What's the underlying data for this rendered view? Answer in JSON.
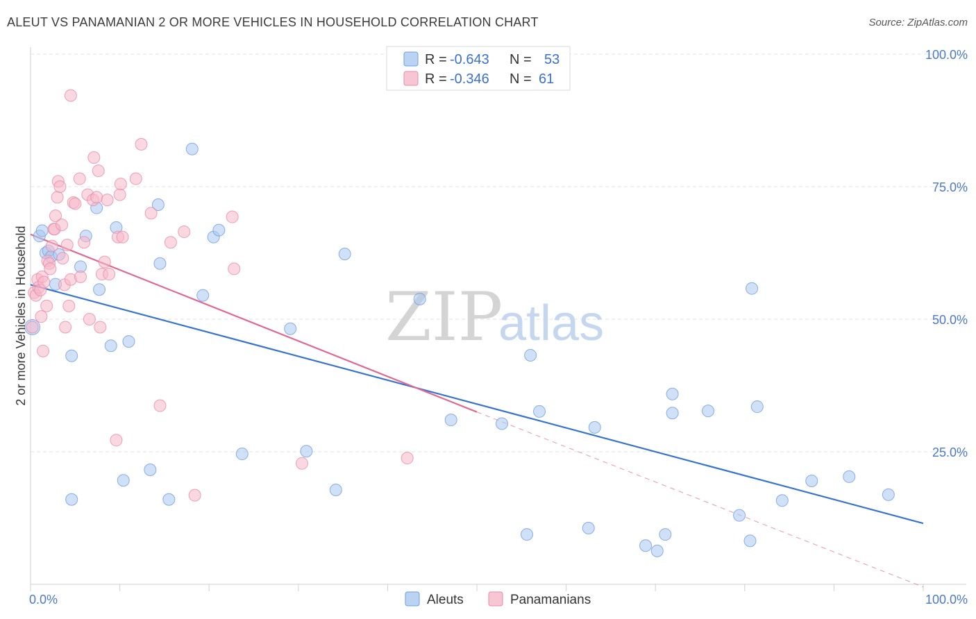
{
  "header": {
    "title": "ALEUT VS PANAMANIAN 2 OR MORE VEHICLES IN HOUSEHOLD CORRELATION CHART",
    "source": "Source: ZipAtlas.com"
  },
  "watermark": {
    "zip": "ZIP",
    "atlas": "atlas"
  },
  "legend": {
    "rows": [
      {
        "r_label": "R =",
        "r_value": "-0.643",
        "n_label": "N =",
        "n_value": "53",
        "color": "#aac8f0"
      },
      {
        "r_label": "R =",
        "r_value": "-0.346",
        "n_label": "N =",
        "n_value": "61",
        "color": "#f5b8cb"
      }
    ]
  },
  "bottom_legend": [
    {
      "label": "Aleuts",
      "color": "#aac8f0"
    },
    {
      "label": "Panamanians",
      "color": "#f5b8cb"
    }
  ],
  "chart_data": {
    "type": "scatter",
    "title": "ALEUT VS PANAMANIAN 2 OR MORE VEHICLES IN HOUSEHOLD CORRELATION CHART",
    "xlabel": "",
    "ylabel": "2 or more Vehicles in Household",
    "xlim": [
      0,
      100
    ],
    "ylim": [
      0,
      100
    ],
    "x_tick_labels": [
      "0.0%",
      "100.0%"
    ],
    "y_ticks": [
      {
        "value": 25,
        "label": "25.0%"
      },
      {
        "value": 50,
        "label": "50.0%"
      },
      {
        "value": 75,
        "label": "75.0%"
      },
      {
        "value": 100,
        "label": "100.0%"
      }
    ],
    "grid": "horizontal-dashed",
    "legend_position": "top-center",
    "series": [
      {
        "name": "Aleuts",
        "color": "#6f9be0",
        "fill": "#aac8f0",
        "trend": {
          "x": [
            0,
            100
          ],
          "y": [
            56.5,
            11.5
          ],
          "color": "#3673d1"
        },
        "points": [
          [
            0.2,
            48.5
          ],
          [
            1.0,
            65.7
          ],
          [
            1.3,
            66.7
          ],
          [
            1.7,
            62.5
          ],
          [
            2.0,
            62.9
          ],
          [
            2.3,
            61.8
          ],
          [
            2.8,
            56.6
          ],
          [
            3.2,
            62.2
          ],
          [
            4.6,
            43.1
          ],
          [
            4.6,
            16.0
          ],
          [
            5.6,
            59.9
          ],
          [
            6.2,
            65.7
          ],
          [
            7.7,
            55.6
          ],
          [
            7.4,
            71.0
          ],
          [
            9.0,
            45.0
          ],
          [
            9.6,
            67.3
          ],
          [
            10.4,
            19.6
          ],
          [
            11.0,
            45.8
          ],
          [
            13.4,
            21.6
          ],
          [
            14.3,
            71.6
          ],
          [
            14.5,
            60.5
          ],
          [
            15.5,
            16.0
          ],
          [
            18.1,
            82.1
          ],
          [
            19.3,
            54.5
          ],
          [
            20.5,
            65.5
          ],
          [
            21.1,
            66.8
          ],
          [
            23.7,
            24.6
          ],
          [
            29.1,
            48.2
          ],
          [
            30.9,
            25.1
          ],
          [
            34.2,
            17.8
          ],
          [
            35.2,
            62.3
          ],
          [
            43.6,
            53.8
          ],
          [
            47.1,
            31.0
          ],
          [
            52.8,
            30.3
          ],
          [
            55.6,
            9.4
          ],
          [
            56.0,
            43.2
          ],
          [
            57.0,
            32.6
          ],
          [
            62.5,
            10.6
          ],
          [
            63.2,
            29.6
          ],
          [
            68.9,
            7.3
          ],
          [
            70.2,
            6.3
          ],
          [
            71.1,
            9.4
          ],
          [
            71.9,
            32.3
          ],
          [
            71.9,
            35.9
          ],
          [
            75.9,
            32.7
          ],
          [
            79.4,
            13.0
          ],
          [
            80.6,
            8.2
          ],
          [
            80.8,
            55.8
          ],
          [
            81.4,
            33.5
          ],
          [
            84.2,
            15.8
          ],
          [
            87.5,
            19.5
          ],
          [
            91.7,
            20.3
          ],
          [
            96.1,
            16.9
          ]
        ]
      },
      {
        "name": "Panamanians",
        "color": "#ea8aa8",
        "fill": "#f5b8cb",
        "trend": {
          "x": [
            0,
            50
          ],
          "y": [
            66,
            32.5
          ],
          "color": "#e0688f",
          "extended_to": [
            100,
            -0.5
          ]
        },
        "points": [
          [
            0.2,
            48.5
          ],
          [
            0.4,
            55.0
          ],
          [
            0.6,
            54.5
          ],
          [
            0.8,
            57.5
          ],
          [
            0.9,
            56.0
          ],
          [
            1.1,
            55.5
          ],
          [
            1.3,
            58.0
          ],
          [
            1.2,
            50.5
          ],
          [
            1.4,
            44.0
          ],
          [
            1.8,
            52.5
          ],
          [
            1.9,
            61.0
          ],
          [
            2.1,
            60.5
          ],
          [
            2.2,
            59.5
          ],
          [
            2.4,
            63.8
          ],
          [
            2.6,
            67.0
          ],
          [
            2.7,
            67.0
          ],
          [
            2.8,
            69.5
          ],
          [
            3.0,
            73.0
          ],
          [
            3.1,
            76.0
          ],
          [
            3.3,
            75.0
          ],
          [
            3.5,
            67.8
          ],
          [
            3.6,
            61.5
          ],
          [
            3.8,
            56.5
          ],
          [
            3.9,
            48.5
          ],
          [
            4.1,
            64.0
          ],
          [
            4.3,
            52.5
          ],
          [
            4.5,
            57.5
          ],
          [
            4.8,
            72.0
          ],
          [
            5.0,
            71.8
          ],
          [
            5.5,
            76.5
          ],
          [
            5.6,
            58.0
          ],
          [
            6.0,
            64.5
          ],
          [
            6.4,
            73.5
          ],
          [
            6.6,
            50.0
          ],
          [
            7.0,
            72.5
          ],
          [
            7.1,
            80.5
          ],
          [
            7.4,
            73.0
          ],
          [
            7.6,
            78.0
          ],
          [
            7.8,
            48.5
          ],
          [
            8.0,
            58.5
          ],
          [
            8.3,
            60.8
          ],
          [
            8.6,
            72.5
          ],
          [
            8.8,
            58.5
          ],
          [
            9.6,
            27.2
          ],
          [
            9.8,
            65.5
          ],
          [
            10.0,
            73.5
          ],
          [
            10.1,
            75.5
          ],
          [
            10.3,
            65.5
          ],
          [
            11.8,
            76.5
          ],
          [
            12.4,
            83.0
          ],
          [
            13.5,
            70.0
          ],
          [
            14.5,
            33.7
          ],
          [
            15.7,
            64.5
          ],
          [
            17.2,
            66.5
          ],
          [
            18.4,
            16.8
          ],
          [
            22.6,
            69.3
          ],
          [
            22.8,
            59.5
          ],
          [
            30.4,
            22.8
          ],
          [
            42.2,
            23.8
          ],
          [
            4.5,
            92.2
          ],
          [
            1.5,
            57.0
          ]
        ]
      }
    ]
  }
}
